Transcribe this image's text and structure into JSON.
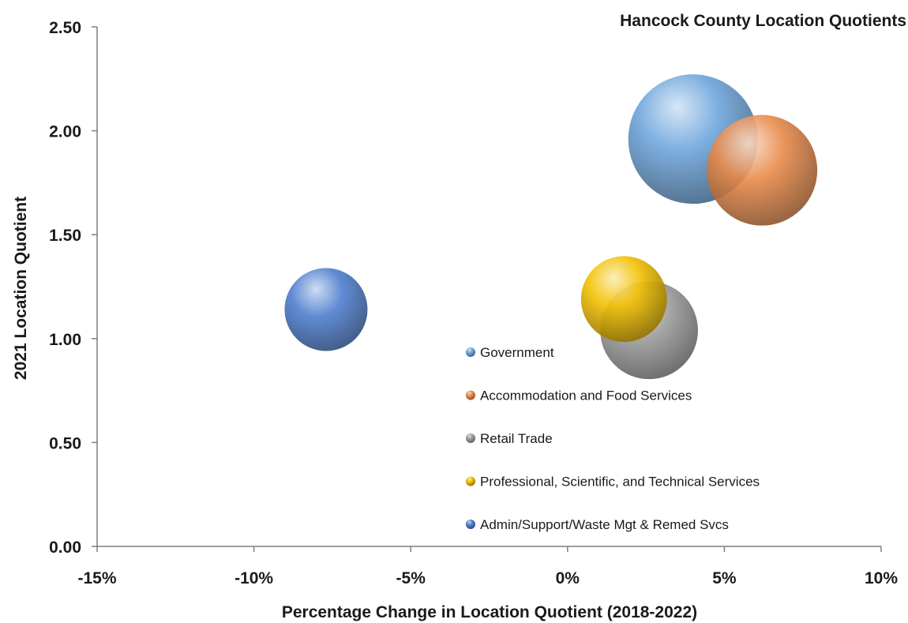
{
  "chart_data": {
    "type": "bubble",
    "title": "Hancock County Location Quotients",
    "xlabel": "Percentage Change in Location Quotient (2018-2022)",
    "ylabel": "2021 Location Quotient",
    "xlim": [
      -15,
      10
    ],
    "ylim": [
      0,
      2.5
    ],
    "x_ticks": [
      "-15%",
      "-10%",
      "-5%",
      "0%",
      "5%",
      "10%"
    ],
    "y_ticks": [
      "0.00",
      "0.50",
      "1.00",
      "1.50",
      "2.00",
      "2.50"
    ],
    "grid": false,
    "legend_position": "inside-center-right",
    "series": [
      {
        "name": "Government",
        "x": 4.0,
        "y": 1.96,
        "relative_size": 1.0,
        "color": "#6fa6dc"
      },
      {
        "name": "Accommodation and Food Services",
        "x": 6.2,
        "y": 1.81,
        "relative_size": 0.73,
        "color": "#e88a4a"
      },
      {
        "name": "Retail Trade",
        "x": 2.6,
        "y": 1.04,
        "relative_size": 0.57,
        "color": "#9e9e9e"
      },
      {
        "name": "Professional, Scientific, and Technical Services",
        "x": 1.8,
        "y": 1.19,
        "relative_size": 0.44,
        "color": "#f2c000"
      },
      {
        "name": "Admin/Support/Waste Mgt & Remed Svcs",
        "x": -7.7,
        "y": 1.14,
        "relative_size": 0.41,
        "color": "#4f7fcf"
      }
    ]
  }
}
